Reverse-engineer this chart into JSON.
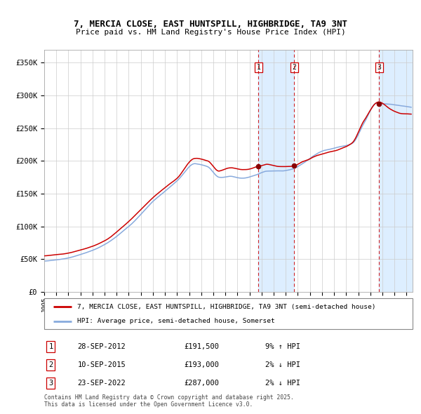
{
  "title": "7, MERCIA CLOSE, EAST HUNTSPILL, HIGHBRIDGE, TA9 3NT",
  "subtitle": "Price paid vs. HM Land Registry's House Price Index (HPI)",
  "legend_line1": "7, MERCIA CLOSE, EAST HUNTSPILL, HIGHBRIDGE, TA9 3NT (semi-detached house)",
  "legend_line2": "HPI: Average price, semi-detached house, Somerset",
  "footer": "Contains HM Land Registry data © Crown copyright and database right 2025.\nThis data is licensed under the Open Government Licence v3.0.",
  "transactions": [
    {
      "num": 1,
      "date": "28-SEP-2012",
      "price": 191500,
      "pct": "9%",
      "dir": "↑"
    },
    {
      "num": 2,
      "date": "10-SEP-2015",
      "price": 193000,
      "pct": "2%",
      "dir": "↓"
    },
    {
      "num": 3,
      "date": "23-SEP-2022",
      "price": 287000,
      "pct": "2%",
      "dir": "↓"
    }
  ],
  "transaction_dates_decimal": [
    2012.745,
    2015.692,
    2022.728
  ],
  "shade_ranges": [
    [
      2012.745,
      2015.692
    ],
    [
      2022.728,
      2025.5
    ]
  ],
  "red_line_color": "#cc0000",
  "blue_line_color": "#88aadd",
  "shade_color": "#ddeeff",
  "dashed_line_color": "#cc0000",
  "grid_color": "#cccccc",
  "ylim": [
    0,
    370000
  ],
  "xlim_start": 1995.0,
  "xlim_end": 2025.5,
  "yticks": [
    0,
    50000,
    100000,
    150000,
    200000,
    250000,
    300000,
    350000
  ],
  "ytick_labels": [
    "£0",
    "£50K",
    "£100K",
    "£150K",
    "£200K",
    "£250K",
    "£300K",
    "£350K"
  ],
  "chart_bg": "#ffffff",
  "fig_bg": "#ffffff"
}
